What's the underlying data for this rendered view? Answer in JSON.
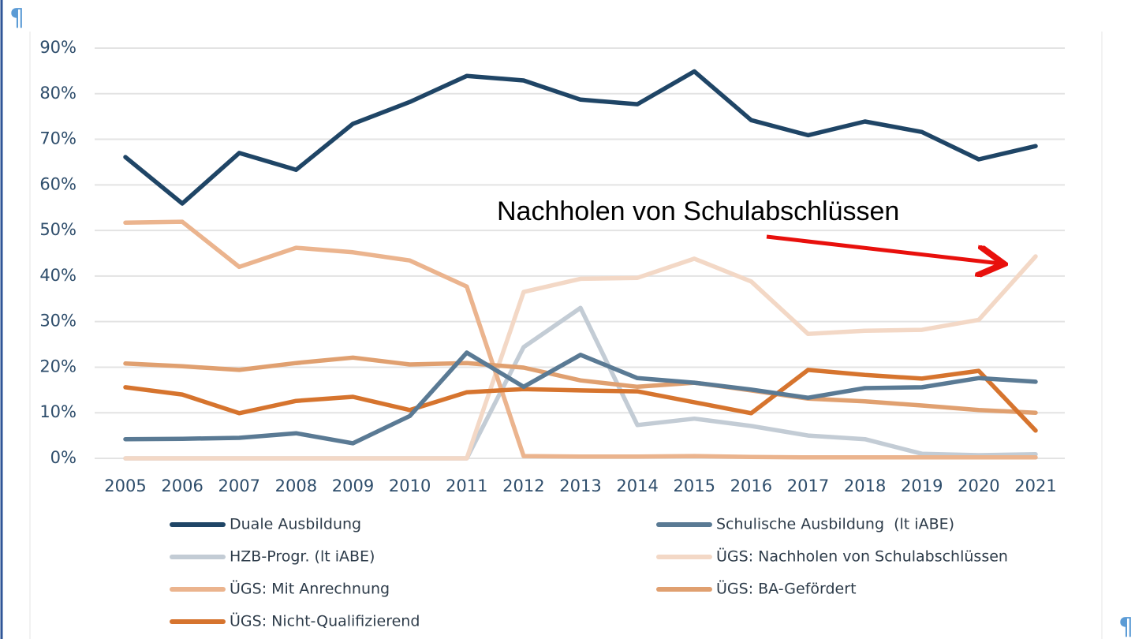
{
  "chart_data": {
    "type": "line",
    "categories": [
      "2005",
      "2006",
      "2007",
      "2008",
      "2009",
      "2010",
      "2011",
      "2012",
      "2013",
      "2014",
      "2015",
      "2016",
      "2017",
      "2018",
      "2019",
      "2020",
      "2021"
    ],
    "ylim": [
      0,
      90
    ],
    "yticks": [
      {
        "value": 0,
        "label": "0%"
      },
      {
        "value": 10,
        "label": "10%"
      },
      {
        "value": 20,
        "label": "20%"
      },
      {
        "value": 30,
        "label": "30%"
      },
      {
        "value": 40,
        "label": "40%"
      },
      {
        "value": 50,
        "label": "50%"
      },
      {
        "value": 60,
        "label": "60%"
      },
      {
        "value": 70,
        "label": "70%"
      },
      {
        "value": 80,
        "label": "80%"
      },
      {
        "value": 90,
        "label": "90%"
      }
    ],
    "grid": true,
    "legend": "bottom",
    "annotation": "Nachholen von Schulabschlüssen",
    "pilcrows": [
      "¶",
      "¶"
    ],
    "series": [
      {
        "name": "Duale Ausbildung",
        "color": "#1f4566",
        "values": [
          66.1,
          55.9,
          67,
          63.3,
          73.4,
          78.2,
          83.9,
          82.9,
          78.7,
          77.7,
          84.9,
          74.2,
          70.9,
          73.9,
          71.6,
          65.6,
          68.5
        ]
      },
      {
        "name": "Schulische Ausbildung  (lt iABE)",
        "color": "#5a7a94",
        "values": [
          4.2,
          4.3,
          4.5,
          5.5,
          3.3,
          9.3,
          23.2,
          15.7,
          22.7,
          17.6,
          16.6,
          15.1,
          13.3,
          15.4,
          15.6,
          17.6,
          16.8
        ]
      },
      {
        "name": "HZB-Progr. (lt iABE)",
        "color": "#c3ccd5",
        "values": [
          0,
          0,
          0,
          0,
          0,
          0,
          0,
          24.4,
          33,
          7.3,
          8.7,
          7.1,
          5,
          4.2,
          1,
          0.7,
          0.9
        ]
      },
      {
        "name": "ÜGS: Nachholen von Schulabschlüssen",
        "color": "#f3d8c6",
        "values": [
          0,
          0,
          0,
          0,
          0,
          0,
          0,
          36.5,
          39.4,
          39.6,
          43.8,
          38.8,
          27.3,
          28,
          28.2,
          30.4,
          44.3
        ]
      },
      {
        "name": "ÜGS: Mit Anrechnung",
        "color": "#ebb48e",
        "values": [
          51.7,
          51.9,
          42,
          46.2,
          45.2,
          43.4,
          37.7,
          0.5,
          0.4,
          0.4,
          0.5,
          0.3,
          0.2,
          0.2,
          0.2,
          0.2,
          0.2
        ]
      },
      {
        "name": "ÜGS: BA-Gefördert",
        "color": "#e0a070",
        "values": [
          20.8,
          20.2,
          19.4,
          20.9,
          22.1,
          20.6,
          20.9,
          19.9,
          17.1,
          15.7,
          16.6,
          14.9,
          13.1,
          12.5,
          11.6,
          10.6,
          10
        ]
      },
      {
        "name": "ÜGS: Nicht-Qualifizierend",
        "color": "#d6742e",
        "values": [
          15.6,
          14,
          9.9,
          12.6,
          13.5,
          10.6,
          14.5,
          15.2,
          14.9,
          14.7,
          12.3,
          9.9,
          19.4,
          18.3,
          17.5,
          19.2,
          6.1
        ]
      }
    ]
  }
}
